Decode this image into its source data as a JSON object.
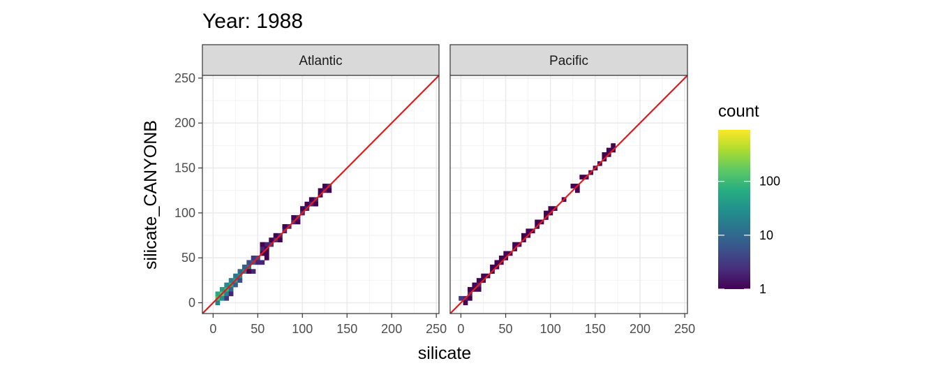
{
  "chart_data": {
    "type": "heatmap",
    "title": "Year: 1988",
    "xlabel": "silicate",
    "ylabel": "silicate_CANYONB",
    "xlim": [
      -12,
      253
    ],
    "ylim": [
      -12,
      253
    ],
    "x_ticks": [
      0,
      50,
      100,
      150,
      200,
      250
    ],
    "y_ticks": [
      0,
      50,
      100,
      150,
      200,
      250
    ],
    "grid": true,
    "reference_line": {
      "slope": 1,
      "intercept": 0,
      "color": "#e41a1c"
    },
    "bin_width": 5,
    "legend": {
      "title": "count",
      "placement": "right",
      "scale": "log",
      "min": 1,
      "max": 900,
      "ticks": [
        {
          "label": "1",
          "value": 1
        },
        {
          "label": "10",
          "value": 10
        },
        {
          "label": "100",
          "value": 100
        }
      ]
    },
    "panels": [
      {
        "name": "Atlantic",
        "bins": [
          [
            5,
            5,
            120
          ],
          [
            10,
            10,
            150
          ],
          [
            15,
            15,
            90
          ],
          [
            20,
            20,
            60
          ],
          [
            25,
            25,
            45
          ],
          [
            30,
            30,
            30
          ],
          [
            35,
            35,
            25
          ],
          [
            40,
            40,
            15
          ],
          [
            45,
            45,
            8
          ],
          [
            50,
            50,
            5
          ],
          [
            55,
            55,
            3
          ],
          [
            60,
            60,
            3
          ],
          [
            65,
            65,
            3
          ],
          [
            70,
            70,
            3
          ],
          [
            75,
            75,
            2
          ],
          [
            80,
            80,
            2
          ],
          [
            85,
            85,
            2
          ],
          [
            90,
            90,
            2
          ],
          [
            95,
            95,
            2
          ],
          [
            100,
            100,
            2
          ],
          [
            105,
            105,
            2
          ],
          [
            110,
            110,
            2
          ],
          [
            115,
            115,
            2
          ],
          [
            120,
            120,
            2
          ],
          [
            125,
            125,
            2
          ],
          [
            130,
            130,
            2
          ],
          [
            5,
            10,
            60
          ],
          [
            10,
            15,
            40
          ],
          [
            15,
            20,
            25
          ],
          [
            20,
            25,
            20
          ],
          [
            25,
            30,
            15
          ],
          [
            30,
            35,
            10
          ],
          [
            35,
            40,
            8
          ],
          [
            40,
            45,
            5
          ],
          [
            45,
            50,
            3
          ],
          [
            55,
            60,
            2
          ],
          [
            60,
            65,
            2
          ],
          [
            70,
            75,
            1
          ],
          [
            80,
            85,
            1
          ],
          [
            90,
            95,
            1
          ],
          [
            100,
            105,
            1
          ],
          [
            110,
            115,
            1
          ],
          [
            120,
            125,
            1
          ],
          [
            125,
            130,
            1
          ],
          [
            10,
            5,
            30
          ],
          [
            15,
            10,
            20
          ],
          [
            20,
            15,
            10
          ],
          [
            25,
            20,
            8
          ],
          [
            30,
            25,
            5
          ],
          [
            40,
            35,
            3
          ],
          [
            50,
            45,
            2
          ],
          [
            60,
            55,
            1
          ],
          [
            75,
            70,
            1
          ],
          [
            95,
            90,
            1
          ],
          [
            115,
            110,
            1
          ],
          [
            130,
            125,
            1
          ],
          [
            15,
            5,
            3
          ],
          [
            20,
            10,
            2
          ],
          [
            45,
            35,
            2
          ],
          [
            55,
            45,
            2
          ],
          [
            60,
            50,
            1
          ],
          [
            55,
            55,
            1
          ],
          [
            40,
            35,
            1
          ],
          [
            5,
            0,
            20
          ],
          [
            55,
            65,
            1
          ],
          [
            60,
            60,
            1
          ],
          [
            65,
            70,
            1
          ],
          [
            105,
            110,
            1
          ],
          [
            120,
            120,
            1
          ]
        ]
      },
      {
        "name": "Pacific",
        "bins": [
          [
            0,
            5,
            3
          ],
          [
            5,
            5,
            2
          ],
          [
            10,
            5,
            1
          ],
          [
            10,
            10,
            2
          ],
          [
            15,
            15,
            1
          ],
          [
            20,
            20,
            2
          ],
          [
            25,
            25,
            1
          ],
          [
            30,
            30,
            1
          ],
          [
            35,
            35,
            1
          ],
          [
            40,
            40,
            1
          ],
          [
            45,
            45,
            1
          ],
          [
            50,
            50,
            1
          ],
          [
            55,
            55,
            1
          ],
          [
            60,
            60,
            1
          ],
          [
            65,
            65,
            1
          ],
          [
            70,
            70,
            1
          ],
          [
            75,
            75,
            1
          ],
          [
            80,
            80,
            1
          ],
          [
            85,
            85,
            1
          ],
          [
            90,
            90,
            1
          ],
          [
            95,
            95,
            1
          ],
          [
            100,
            100,
            1
          ],
          [
            105,
            105,
            1
          ],
          [
            115,
            115,
            1
          ],
          [
            125,
            130,
            1
          ],
          [
            130,
            130,
            1
          ],
          [
            135,
            140,
            1
          ],
          [
            140,
            140,
            1
          ],
          [
            145,
            145,
            1
          ],
          [
            150,
            150,
            1
          ],
          [
            155,
            155,
            1
          ],
          [
            160,
            160,
            1
          ],
          [
            165,
            165,
            1
          ],
          [
            165,
            170,
            1
          ],
          [
            170,
            170,
            1
          ],
          [
            170,
            175,
            1
          ],
          [
            160,
            165,
            1
          ],
          [
            10,
            15,
            1
          ],
          [
            15,
            20,
            1
          ],
          [
            20,
            25,
            1
          ],
          [
            25,
            30,
            1
          ],
          [
            35,
            40,
            1
          ],
          [
            40,
            45,
            1
          ],
          [
            50,
            55,
            1
          ],
          [
            60,
            65,
            1
          ],
          [
            75,
            80,
            1
          ],
          [
            85,
            90,
            1
          ],
          [
            95,
            100,
            1
          ],
          [
            100,
            105,
            1
          ],
          [
            130,
            125,
            1
          ],
          [
            5,
            0,
            1
          ],
          [
            20,
            15,
            1
          ],
          [
            45,
            50,
            1
          ],
          [
            70,
            75,
            1
          ]
        ]
      }
    ]
  }
}
